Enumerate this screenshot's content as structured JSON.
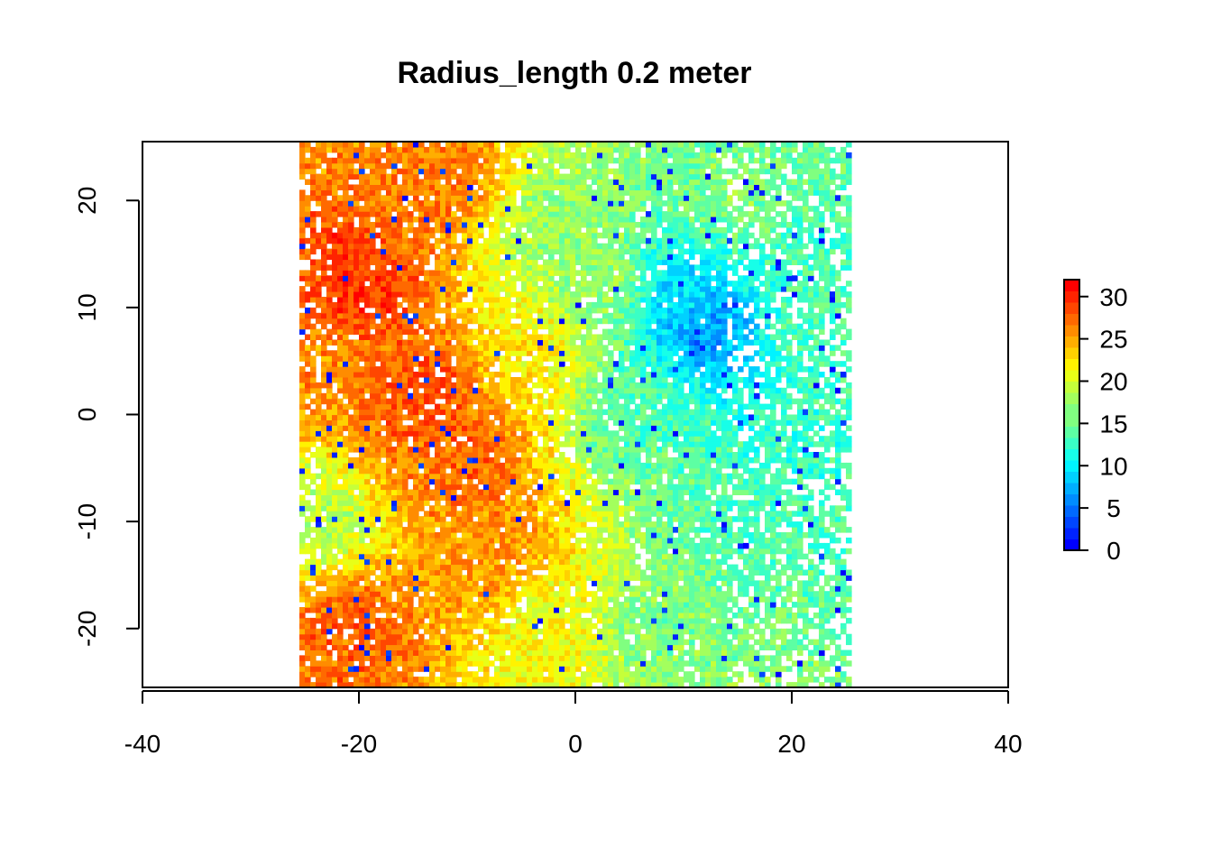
{
  "chart_data": {
    "type": "heatmap",
    "title": "Radius_length 0.2 meter",
    "xlabel": "",
    "ylabel": "",
    "xlim": [
      -40,
      40
    ],
    "ylim": [
      -25.5,
      25.5
    ],
    "data_extent": {
      "x": [
        -25.5,
        25.5
      ],
      "y": [
        -25.5,
        25.5
      ]
    },
    "x_ticks": [
      "-40",
      "-20",
      "0",
      "20",
      "40"
    ],
    "y_ticks": [
      "-20",
      "-10",
      "0",
      "10",
      "20"
    ],
    "colorbar": {
      "range": [
        0,
        32
      ],
      "ticks": [
        "0",
        "5",
        "10",
        "15",
        "20",
        "25",
        "30"
      ],
      "palette": [
        "#0000ff",
        "#0080ff",
        "#00ffff",
        "#80ff80",
        "#ffff00",
        "#ff8000",
        "#ff0000"
      ]
    },
    "value_regions": [
      {
        "x": -20,
        "y": 12,
        "value": 30
      },
      {
        "x": -14,
        "y": 2,
        "value": 29
      },
      {
        "x": -10,
        "y": -4,
        "value": 28
      },
      {
        "x": -21,
        "y": -20,
        "value": 28
      },
      {
        "x": -12,
        "y": 22,
        "value": 27
      },
      {
        "x": -8,
        "y": -12,
        "value": 26
      },
      {
        "x": -24,
        "y": 5,
        "value": 26
      },
      {
        "x": -4,
        "y": 6,
        "value": 22
      },
      {
        "x": -2,
        "y": 18,
        "value": 17
      },
      {
        "x": 2,
        "y": 12,
        "value": 17
      },
      {
        "x": 6,
        "y": 0,
        "value": 14
      },
      {
        "x": 10,
        "y": 11,
        "value": 9
      },
      {
        "x": 12,
        "y": 8,
        "value": 6
      },
      {
        "x": 16,
        "y": -10,
        "value": 14
      },
      {
        "x": 20,
        "y": -4,
        "value": 13
      },
      {
        "x": 22,
        "y": 10,
        "value": 14
      },
      {
        "x": 8,
        "y": -20,
        "value": 16
      },
      {
        "x": -2,
        "y": -20,
        "value": 21
      },
      {
        "x": 14,
        "y": 20,
        "value": 16
      },
      {
        "x": -24,
        "y": -10,
        "value": 18
      }
    ],
    "grid": false,
    "legend": "right"
  }
}
